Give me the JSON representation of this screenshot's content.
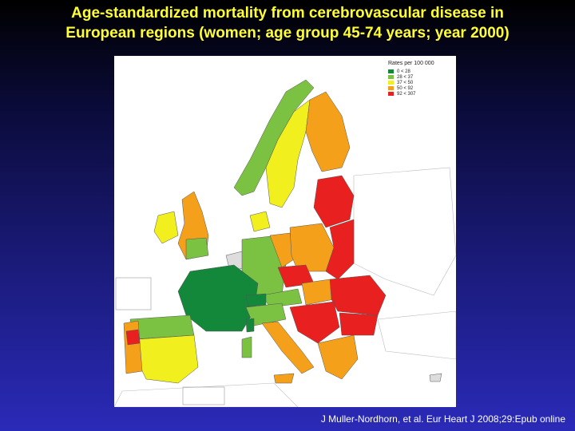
{
  "slide": {
    "title_line1": "Age-standardized mortality from cerebrovascular disease in",
    "title_line2": "European regions (women; age group 45-74 years; year 2000)",
    "citation": "J Muller-Nordhorn, et al. Eur Heart J 2008;29:Epub online"
  },
  "legend": {
    "title": "Rates per 100 000",
    "items": [
      {
        "label": "0 < 28",
        "color": "#13873a"
      },
      {
        "label": "28 < 37",
        "color": "#7cc242"
      },
      {
        "label": "37 < 50",
        "color": "#f2ef1e"
      },
      {
        "label": "50 < 92",
        "color": "#f5a01a"
      },
      {
        "label": "92 < 307",
        "color": "#e8201f"
      }
    ]
  }
}
